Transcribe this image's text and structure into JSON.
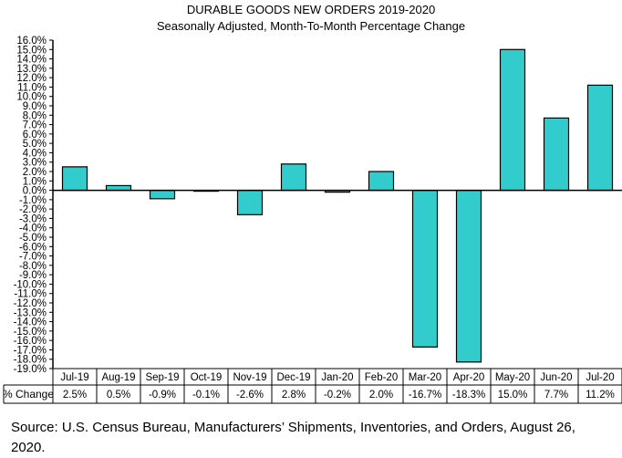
{
  "chart_data": {
    "type": "bar",
    "title": "DURABLE GOODS NEW ORDERS 2019-2020",
    "subtitle": "Seasonally Adjusted,  Month-To-Month Percentage Change",
    "categories": [
      "Jul-19",
      "Aug-19",
      "Sep-19",
      "Oct-19",
      "Nov-19",
      "Dec-19",
      "Jan-20",
      "Feb-20",
      "Mar-20",
      "Apr-20",
      "May-20",
      "Jun-20",
      "Jul-20"
    ],
    "values": [
      2.5,
      0.5,
      -0.9,
      -0.1,
      -2.6,
      2.8,
      -0.2,
      2.0,
      -16.7,
      -18.3,
      15.0,
      7.7,
      11.2
    ],
    "value_labels": [
      "2.5%",
      "0.5%",
      "-0.9%",
      "-0.1%",
      "-2.6%",
      "2.8%",
      "-0.2%",
      "2.0%",
      "-16.7%",
      "-18.3%",
      "15.0%",
      "7.7%",
      "11.2%"
    ],
    "table_row_label": "% Change",
    "ylim": [
      -19,
      16
    ],
    "ytick_step": 1,
    "ytick_format": "%",
    "grid": false,
    "bar_color": "#33CCCC",
    "bar_edge_color": "#000000"
  },
  "source": "Source: U.S. Census Bureau, Manufacturers’ Shipments, Inventories, and Orders, August 26, 2020."
}
